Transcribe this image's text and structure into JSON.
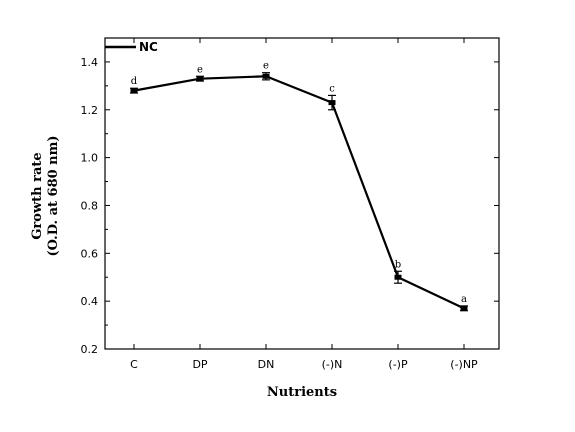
{
  "chart_data": {
    "type": "line",
    "categories": [
      "C",
      "DP",
      "DN",
      "(-)N",
      "(-)P",
      "(-)NP"
    ],
    "series": [
      {
        "name": "NC",
        "values": [
          1.28,
          1.33,
          1.34,
          1.23,
          0.5,
          0.37
        ],
        "errors": [
          0.01,
          0.01,
          0.015,
          0.03,
          0.025,
          0.01
        ],
        "labels": [
          "d",
          "e",
          "e",
          "c",
          "b",
          "a"
        ],
        "color": "#000000"
      }
    ],
    "xlabel": "Nutrients",
    "ylabel_line1": "Growth rate",
    "ylabel_line2": "(O.D. at 680 nm)",
    "ylim": [
      0.2,
      1.5
    ],
    "yticks": [
      "0.2",
      "0.4",
      "0.6",
      "0.8",
      "1.0",
      "1.2",
      "1.4"
    ],
    "grid": false,
    "legend_position": "top-left"
  }
}
